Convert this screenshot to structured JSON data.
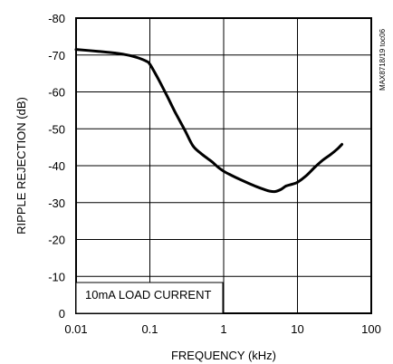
{
  "chart_data": {
    "type": "line",
    "xlabel": "FREQUENCY (kHz)",
    "ylabel": "RIPPLE REJECTION (dB)",
    "x_scale": "log",
    "xlim": [
      0.01,
      100
    ],
    "ylim": [
      0,
      -80
    ],
    "x_ticks": [
      0.01,
      0.1,
      1,
      10,
      100
    ],
    "x_tick_labels": [
      "0.01",
      "0.1",
      "1",
      "10",
      "100"
    ],
    "y_ticks": [
      0,
      -10,
      -20,
      -30,
      -40,
      -50,
      -60,
      -70,
      -80
    ],
    "y_tick_labels": [
      "0",
      "-10",
      "-20",
      "-30",
      "-40",
      "-50",
      "-60",
      "-70",
      "-80"
    ],
    "grid": true,
    "annotation": "10mA LOAD CURRENT",
    "side_label": "MAX8718/19 toc06",
    "series": [
      {
        "x": [
          0.01,
          0.02,
          0.035,
          0.05,
          0.07,
          0.09,
          0.1,
          0.13,
          0.17,
          0.22,
          0.3,
          0.38,
          0.48,
          0.6,
          0.7,
          0.85,
          1.0,
          1.3,
          1.7,
          2.2,
          2.8,
          3.5,
          4.2,
          5.0,
          6.0,
          7.0,
          8.5,
          10,
          13,
          17,
          22,
          28,
          35,
          40
        ],
        "y": [
          -71.5,
          -71,
          -70.5,
          -70,
          -69.2,
          -68.3,
          -67.5,
          -63.5,
          -59,
          -54.5,
          -49.5,
          -45.5,
          -43.5,
          -42,
          -41,
          -39.5,
          -38.5,
          -37.3,
          -36.2,
          -35.2,
          -34.3,
          -33.6,
          -33.1,
          -33,
          -33.6,
          -34.5,
          -35,
          -35.5,
          -37.2,
          -39.5,
          -41.5,
          -43,
          -44.6,
          -45.8
        ]
      }
    ]
  }
}
